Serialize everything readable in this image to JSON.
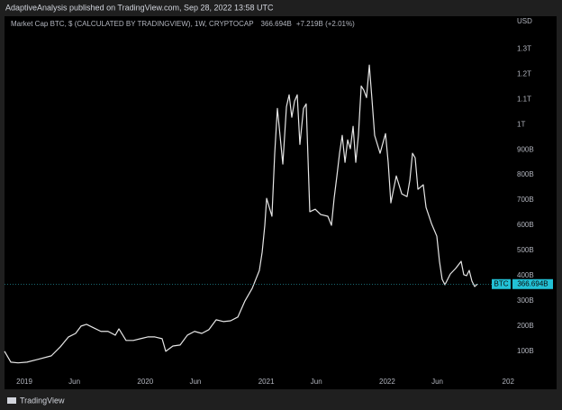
{
  "header": {
    "publisher": "AdaptiveAnalysis published on TradingView.com, Sep 28, 2022 13:58 UTC",
    "brand": "TradingView"
  },
  "chart_data": {
    "type": "line",
    "symbol_info": "Market Cap BTC, $ (CALCULATED BY TRADINGVIEW), 1W, CRYPTOCAP",
    "last_value_label": "366.694B",
    "change_label": "+7.219B (+2.01%)",
    "y_unit": "USD",
    "grid": false,
    "x": [
      2018.836,
      2018.888,
      2018.948,
      2019.022,
      2019.112,
      2019.223,
      2019.298,
      2019.365,
      2019.424,
      2019.469,
      2019.514,
      2019.573,
      2019.633,
      2019.692,
      2019.752,
      2019.782,
      2019.841,
      2019.901,
      2019.96,
      2020.02,
      2020.079,
      2020.139,
      2020.169,
      2020.228,
      2020.288,
      2020.348,
      2020.407,
      2020.467,
      2020.526,
      2020.586,
      2020.645,
      2020.705,
      2020.765,
      2020.824,
      2020.884,
      2020.943,
      2020.966,
      2020.988,
      2021.003,
      2021.047,
      2021.07,
      2021.092,
      2021.137,
      2021.167,
      2021.189,
      2021.211,
      2021.234,
      2021.256,
      2021.278,
      2021.308,
      2021.33,
      2021.36,
      2021.405,
      2021.45,
      2021.509,
      2021.539,
      2021.561,
      2021.584,
      2021.606,
      2021.628,
      2021.651,
      2021.673,
      2021.695,
      2021.718,
      2021.74,
      2021.762,
      2021.785,
      2021.807,
      2021.829,
      2021.852,
      2021.874,
      2021.896,
      2021.941,
      2021.986,
      2022.008,
      2022.03,
      2022.075,
      2022.12,
      2022.164,
      2022.187,
      2022.209,
      2022.231,
      2022.254,
      2022.298,
      2022.321,
      2022.366,
      2022.41,
      2022.432,
      2022.454,
      2022.477,
      2022.522,
      2022.566,
      2022.611,
      2022.633,
      2022.656,
      2022.678,
      2022.7,
      2022.723,
      2022.745
    ],
    "series": [
      {
        "name": "BTC",
        "color": "#e6e6e6",
        "values": [
          100,
          57,
          54,
          57,
          68,
          82,
          118,
          157,
          171,
          200,
          207,
          193,
          179,
          179,
          164,
          189,
          143,
          143,
          150,
          157,
          157,
          150,
          100,
          121,
          125,
          164,
          179,
          171,
          186,
          225,
          218,
          221,
          236,
          300,
          350,
          421,
          493,
          600,
          707,
          636,
          886,
          1064,
          843,
          1071,
          1118,
          1029,
          1093,
          1118,
          921,
          1064,
          1082,
          654,
          664,
          643,
          636,
          600,
          707,
          796,
          886,
          957,
          850,
          939,
          904,
          993,
          850,
          957,
          1153,
          1136,
          1107,
          1236,
          1100,
          957,
          886,
          964,
          850,
          689,
          796,
          725,
          714,
          779,
          886,
          868,
          743,
          761,
          671,
          607,
          557,
          457,
          386,
          364,
          407,
          429,
          457,
          404,
          400,
          421,
          379,
          357,
          366.694
        ]
      }
    ],
    "xlim": [
      2018.836,
      2023.028
    ],
    "xticks": [
      2019,
      {
        "value": 2019.414,
        "label": "Jun"
      },
      2020,
      {
        "value": 2020.414,
        "label": "Jun"
      },
      2021,
      {
        "value": 2021.414,
        "label": "Jun"
      },
      2022,
      {
        "value": 2022.414,
        "label": "Jun"
      },
      {
        "value": 2023,
        "label": "202"
      }
    ],
    "ylim": [
      10,
      1430
    ],
    "yticks": [
      {
        "value": 100,
        "label": "100B"
      },
      {
        "value": 200,
        "label": "200B"
      },
      {
        "value": 300,
        "label": "300B"
      },
      {
        "value": 400,
        "label": "400B"
      },
      {
        "value": 500,
        "label": "500B"
      },
      {
        "value": 600,
        "label": "600B"
      },
      {
        "value": 700,
        "label": "700B"
      },
      {
        "value": 800,
        "label": "800B"
      },
      {
        "value": 900,
        "label": "900B"
      },
      {
        "value": 1000,
        "label": "1T"
      },
      {
        "value": 1100,
        "label": "1.1T"
      },
      {
        "value": 1200,
        "label": "1.2T"
      },
      {
        "value": 1300,
        "label": "1.3T"
      }
    ]
  }
}
